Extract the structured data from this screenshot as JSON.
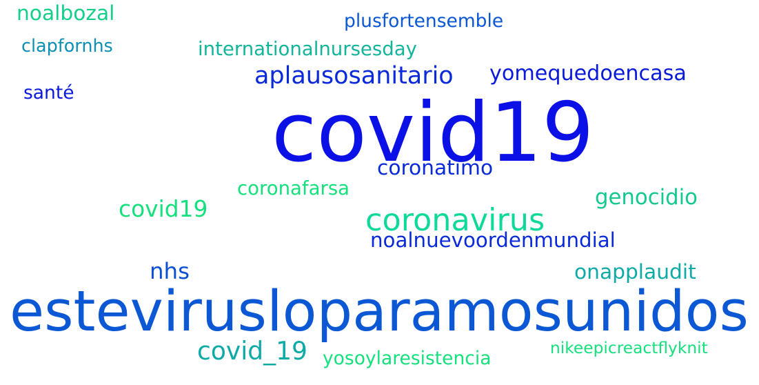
{
  "words": [
    {
      "text": "covid19",
      "color": "#0a10e6",
      "weight": "largest"
    },
    {
      "text": "estevirusloparamosunidos",
      "color": "#0b57d4",
      "weight": "very-large"
    },
    {
      "text": "coronavirus",
      "color": "#0fd99a",
      "weight": "large"
    },
    {
      "text": "aplausosanitario",
      "color": "#0a2ad9",
      "weight": "medium"
    },
    {
      "text": "yomequedoencasa",
      "color": "#0a1ad9",
      "weight": "medium"
    },
    {
      "text": "covid_19",
      "color": "#0eaaa5",
      "weight": "medium"
    },
    {
      "text": "covid\u001f19",
      "color": "#14e07d",
      "weight": "medium"
    },
    {
      "text": "nhs",
      "color": "#0b4fd2",
      "weight": "medium"
    },
    {
      "text": "coronatimo",
      "color": "#0a2ad9",
      "weight": "small"
    },
    {
      "text": "coronafarsa",
      "color": "#14e07d",
      "weight": "small"
    },
    {
      "text": "genocidio",
      "color": "#13c98f",
      "weight": "small"
    },
    {
      "text": "noalnuevoordenmundial",
      "color": "#0a2ad9",
      "weight": "small"
    },
    {
      "text": "onapplaudit",
      "color": "#0eaaa5",
      "weight": "small"
    },
    {
      "text": "internationalnursesday",
      "color": "#13b59a",
      "weight": "small"
    },
    {
      "text": "noalbozal",
      "color": "#14cf8a",
      "weight": "small"
    },
    {
      "text": "plusfortensemble",
      "color": "#0b57d4",
      "weight": "small"
    },
    {
      "text": "clapfornhs",
      "color": "#0e8fb4",
      "weight": "small"
    },
    {
      "text": "santé",
      "color": "#0a1ad9",
      "weight": "small"
    },
    {
      "text": "yosoylaresistencia",
      "color": "#14e07d",
      "weight": "small"
    },
    {
      "text": "nikeepicreactflyknit",
      "color": "#14e07d",
      "weight": "small"
    }
  ]
}
